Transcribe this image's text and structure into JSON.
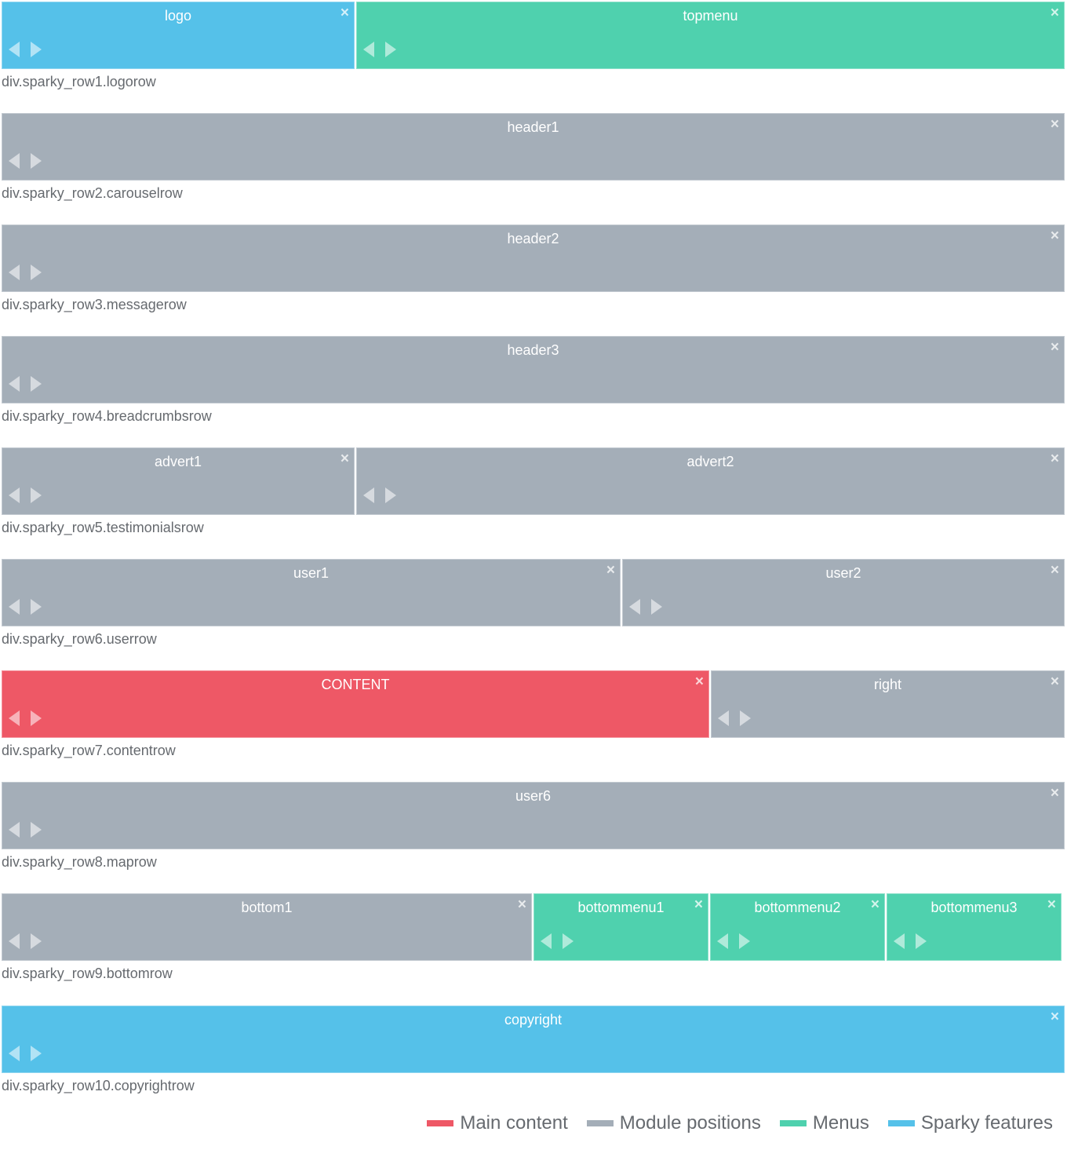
{
  "colors": {
    "main": "#ee5866",
    "module": "#a4aeb8",
    "menu": "#4fd1ae",
    "feature": "#55c1e9"
  },
  "icons": {
    "close": "×",
    "arrow_left": "left-arrow-icon",
    "arrow_right": "right-arrow-icon"
  },
  "rows": [
    {
      "caption": "div.sparky_row1.logorow",
      "blocks": [
        {
          "label": "logo",
          "kind": "feature"
        },
        {
          "label": "topmenu",
          "kind": "menu"
        }
      ]
    },
    {
      "caption": "div.sparky_row2.carouselrow",
      "blocks": [
        {
          "label": "header1",
          "kind": "module"
        }
      ]
    },
    {
      "caption": "div.sparky_row3.messagerow",
      "blocks": [
        {
          "label": "header2",
          "kind": "module"
        }
      ]
    },
    {
      "caption": "div.sparky_row4.breadcrumbsrow",
      "blocks": [
        {
          "label": "header3",
          "kind": "module"
        }
      ]
    },
    {
      "caption": "div.sparky_row5.testimonialsrow",
      "blocks": [
        {
          "label": "advert1",
          "kind": "module"
        },
        {
          "label": "advert2",
          "kind": "module"
        }
      ]
    },
    {
      "caption": "div.sparky_row6.userrow",
      "blocks": [
        {
          "label": "user1",
          "kind": "module"
        },
        {
          "label": "user2",
          "kind": "module"
        }
      ]
    },
    {
      "caption": "div.sparky_row7.contentrow",
      "blocks": [
        {
          "label": "CONTENT",
          "kind": "main"
        },
        {
          "label": "right",
          "kind": "module"
        }
      ]
    },
    {
      "caption": "div.sparky_row8.maprow",
      "blocks": [
        {
          "label": "user6",
          "kind": "module"
        }
      ]
    },
    {
      "caption": "div.sparky_row9.bottomrow",
      "blocks": [
        {
          "label": "bottom1",
          "kind": "module"
        },
        {
          "label": "bottommenu1",
          "kind": "menu"
        },
        {
          "label": "bottommenu2",
          "kind": "menu"
        },
        {
          "label": "bottommenu3",
          "kind": "menu"
        }
      ]
    },
    {
      "caption": "div.sparky_row10.copyrightrow",
      "blocks": [
        {
          "label": "copyright",
          "kind": "feature"
        }
      ]
    }
  ],
  "legend": [
    {
      "label": "Main content",
      "kind": "main"
    },
    {
      "label": "Module positions",
      "kind": "module"
    },
    {
      "label": "Menus",
      "kind": "menu"
    },
    {
      "label": "Sparky features",
      "kind": "feature"
    }
  ]
}
